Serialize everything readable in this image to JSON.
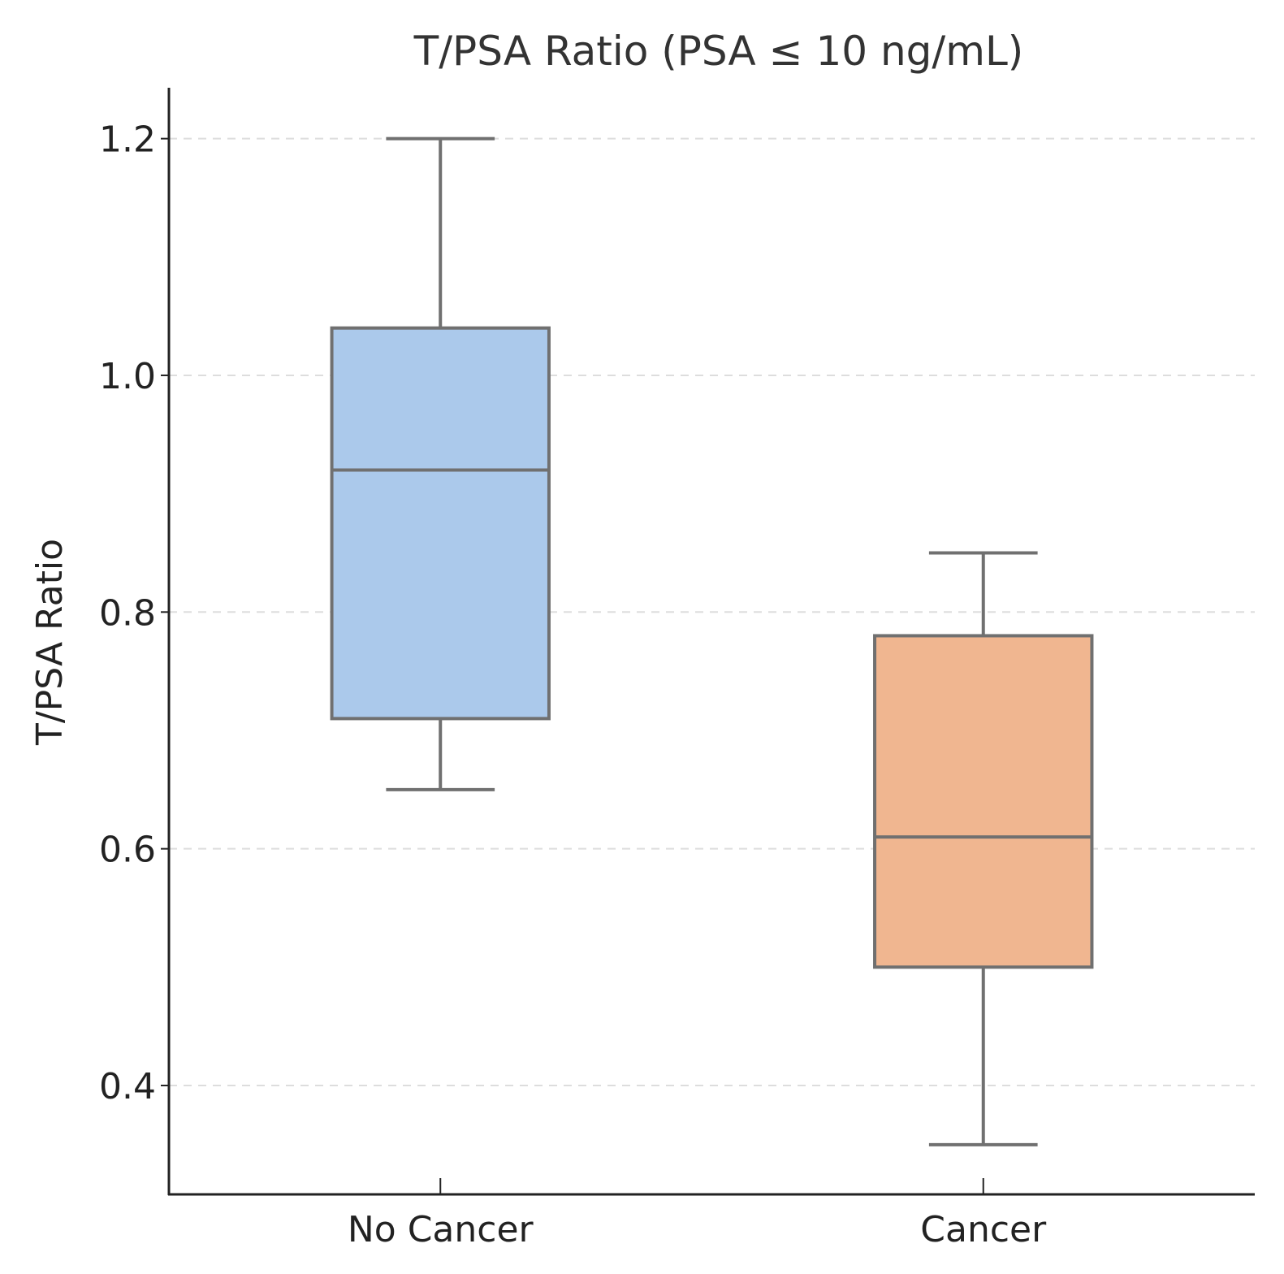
{
  "chart_data": {
    "type": "box",
    "title": "T/PSA Ratio (PSA ≤ 10 ng/mL)",
    "xlabel": "",
    "ylabel": "T/PSA Ratio",
    "ylim": [
      0.308,
      1.243
    ],
    "yticks": [
      0.4,
      0.6,
      0.8,
      1.0,
      1.2
    ],
    "ytick_labels": [
      "0.4",
      "0.6",
      "0.8",
      "1.0",
      "1.2"
    ],
    "grid": "y-dashed",
    "categories": [
      "No Cancer",
      "Cancer"
    ],
    "series": [
      {
        "name": "No Cancer",
        "whisker_low": 0.65,
        "q1": 0.71,
        "median": 0.92,
        "q3": 1.04,
        "whisker_high": 1.2,
        "color": "#abc9eb"
      },
      {
        "name": "Cancer",
        "whisker_low": 0.35,
        "q1": 0.5,
        "median": 0.61,
        "q3": 0.78,
        "whisker_high": 0.85,
        "color": "#f0b690"
      }
    ],
    "colors": {
      "box_edge": "#707070",
      "axis": "#222222",
      "grid": "#dddddd"
    }
  }
}
